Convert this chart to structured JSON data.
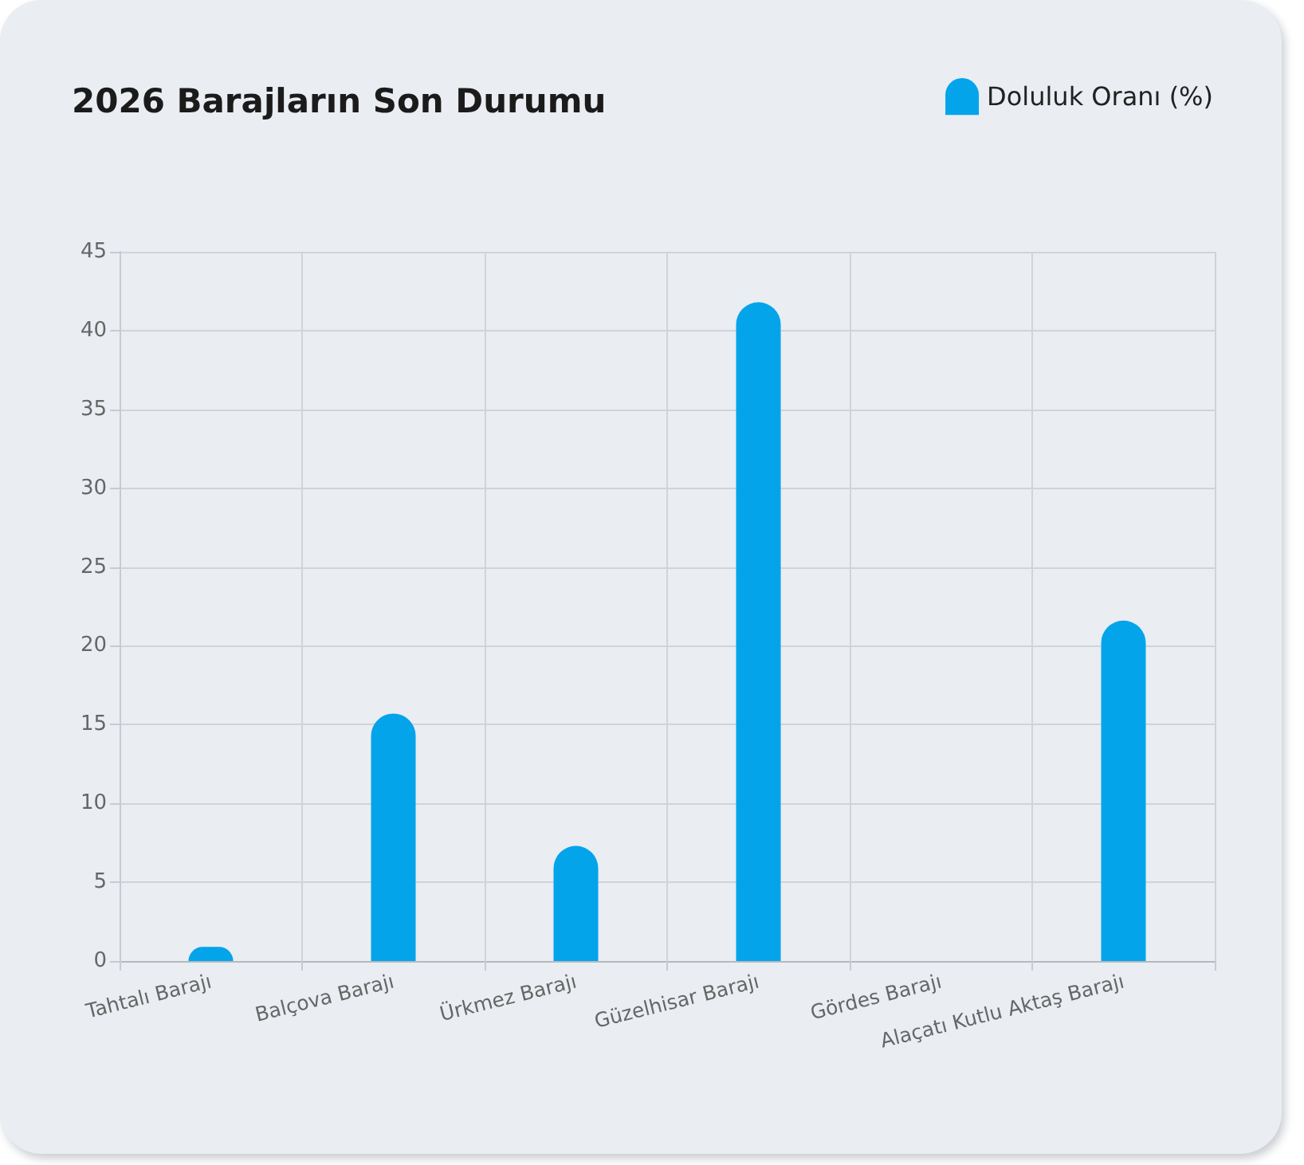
{
  "chart_data": {
    "type": "bar",
    "title": "2026 Barajların Son Durumu",
    "categories": [
      "Tahtalı Barajı",
      "Balçova Barajı",
      "Ürkmez Barajı",
      "Güzelhisar Barajı",
      "Gördes Barajı",
      "Alaçatı Kutlu Aktaş Barajı"
    ],
    "series": [
      {
        "name": "Doluluk Oranı (%)",
        "color": "#03a4ea",
        "values": [
          0.9,
          15.7,
          7.3,
          41.8,
          0,
          21.6
        ]
      }
    ],
    "ylim": [
      0,
      45
    ],
    "yticks": [
      0,
      5,
      10,
      15,
      20,
      25,
      30,
      35,
      40,
      45
    ],
    "grid": true,
    "legend": "top right"
  }
}
